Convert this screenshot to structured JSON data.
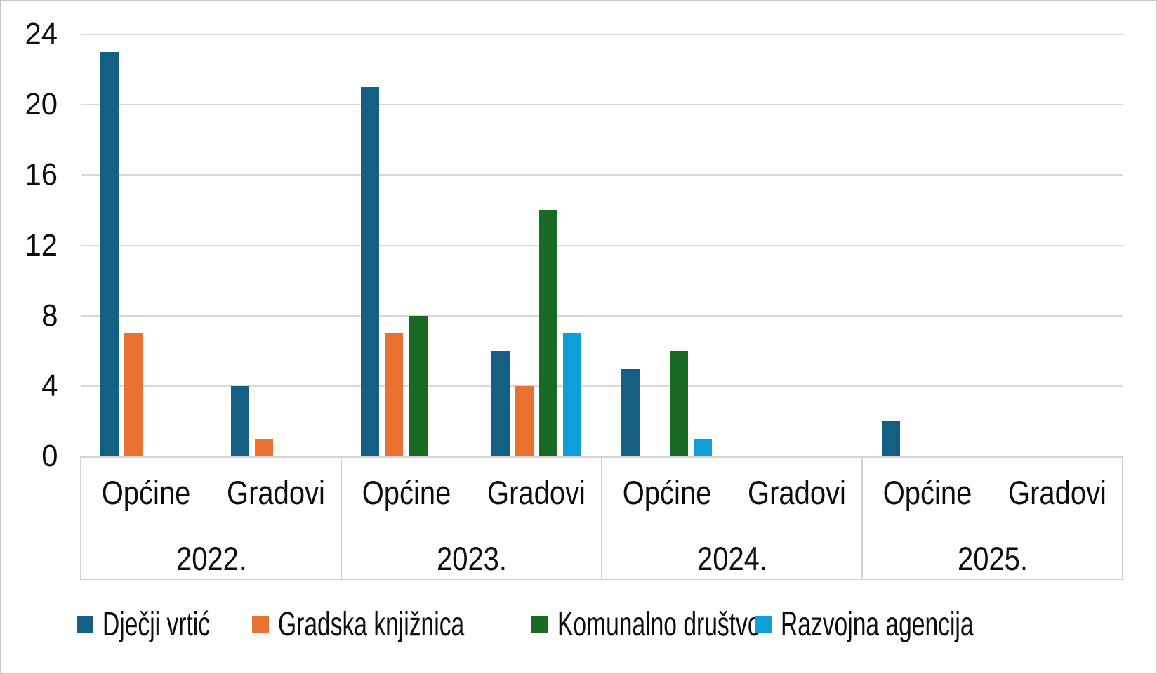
{
  "chart_data": {
    "type": "bar",
    "title": "",
    "xlabel": "",
    "ylabel": "",
    "ylim": [
      0,
      24
    ],
    "y_ticks": [
      0,
      4,
      8,
      12,
      16,
      20,
      24
    ],
    "grid": true,
    "legend_position": "bottom",
    "groups": [
      "2022.",
      "2023.",
      "2024.",
      "2025."
    ],
    "categories_per_group": [
      "Općine",
      "Gradovi"
    ],
    "series": [
      {
        "name": "Dječji vrtić",
        "color": "#156082",
        "values": [
          [
            23,
            4
          ],
          [
            21,
            6
          ],
          [
            5,
            0
          ],
          [
            2,
            0
          ]
        ]
      },
      {
        "name": "Gradska knjižnica",
        "color": "#E97132",
        "values": [
          [
            7,
            1
          ],
          [
            7,
            4
          ],
          [
            0,
            0
          ],
          [
            0,
            0
          ]
        ]
      },
      {
        "name": "Komunalno društvo",
        "color": "#196B24",
        "values": [
          [
            0,
            0
          ],
          [
            8,
            14
          ],
          [
            6,
            0
          ],
          [
            0,
            0
          ]
        ]
      },
      {
        "name": "Razvojna agencija",
        "color": "#0F9ED5",
        "values": [
          [
            0,
            0
          ],
          [
            0,
            7
          ],
          [
            1,
            0
          ],
          [
            0,
            0
          ]
        ]
      }
    ],
    "colors": {
      "gridline": "#d9d9d9",
      "axis_table_line": "#d3d3d3",
      "text": "#0d0d0d",
      "background": "#ffffff"
    }
  }
}
